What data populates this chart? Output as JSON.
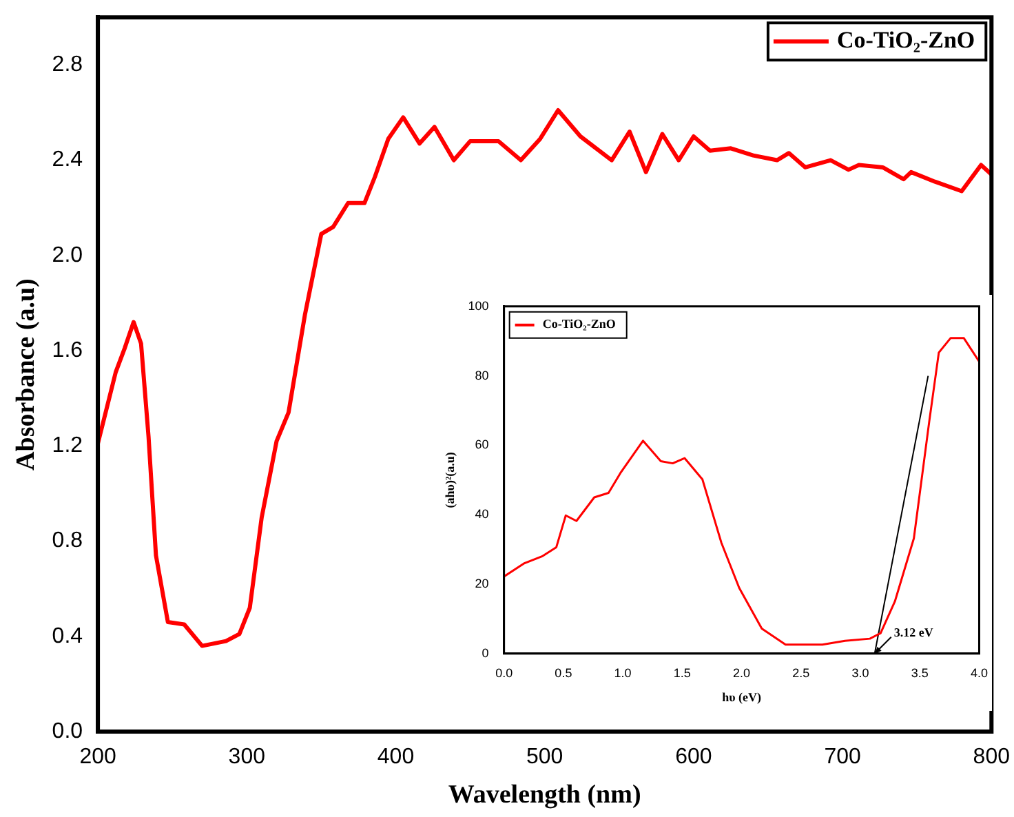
{
  "chart_data": [
    {
      "type": "line",
      "xlabel": "Wavelength (nm)",
      "ylabel": "Absorbance (a.u)",
      "legend": "top right",
      "marker": "none",
      "grid": false,
      "xlim": [
        200,
        800
      ],
      "xticks": [
        200,
        300,
        400,
        500,
        600,
        700,
        800
      ],
      "ylim": [
        0,
        3.0
      ],
      "yticks": [
        {
          "value": 0,
          "label": "0.0"
        },
        {
          "value": 0.4,
          "label": "0.4"
        },
        {
          "value": 0.8,
          "label": "0.8"
        },
        {
          "value": 1.2,
          "label": "1.2"
        },
        {
          "value": 1.6,
          "label": "1.6"
        },
        {
          "value": 2.0,
          "label": "2.0"
        },
        {
          "value": 2.4,
          "label": "2.4"
        },
        {
          "value": 2.8,
          "label": "2.8"
        }
      ],
      "x": [
        200,
        212,
        218,
        224,
        229,
        234,
        239,
        247,
        258,
        270,
        286,
        295,
        302,
        310,
        320,
        328,
        339,
        350,
        358,
        368,
        379,
        386,
        395,
        405,
        416,
        426,
        439,
        450,
        469,
        484,
        497,
        509,
        524,
        545,
        557,
        568,
        579,
        590,
        600,
        611,
        625,
        640,
        656,
        664,
        675,
        692,
        704,
        711,
        727,
        741,
        746,
        762,
        780,
        793,
        800
      ],
      "series": [
        {
          "name": "Co-TiO₂-ZnO",
          "color": "#ff0000",
          "values": [
            1.21,
            1.51,
            1.61,
            1.72,
            1.63,
            1.24,
            0.74,
            0.46,
            0.45,
            0.36,
            0.38,
            0.41,
            0.52,
            0.9,
            1.22,
            1.34,
            1.75,
            2.09,
            2.12,
            2.22,
            2.22,
            2.33,
            2.49,
            2.58,
            2.47,
            2.54,
            2.4,
            2.48,
            2.48,
            2.4,
            2.49,
            2.61,
            2.5,
            2.4,
            2.52,
            2.35,
            2.51,
            2.4,
            2.5,
            2.44,
            2.45,
            2.42,
            2.4,
            2.43,
            2.37,
            2.4,
            2.36,
            2.38,
            2.37,
            2.32,
            2.35,
            2.31,
            2.27,
            2.38,
            2.34
          ]
        }
      ]
    },
    {
      "type": "line",
      "xlabel": "hυ (eV)",
      "ylabel": "(ahυ)²(a.u)",
      "legend": "top left",
      "marker": "none",
      "grid": false,
      "xlim": [
        0,
        4.0
      ],
      "xticks": [
        {
          "value": 0,
          "label": "0.0"
        },
        {
          "value": 0.5,
          "label": "0.5"
        },
        {
          "value": 1,
          "label": "1.0"
        },
        {
          "value": 1.5,
          "label": "1.5"
        },
        {
          "value": 2,
          "label": "2.0"
        },
        {
          "value": 2.5,
          "label": "2.5"
        },
        {
          "value": 3,
          "label": "3.0"
        },
        {
          "value": 3.5,
          "label": "3.5"
        },
        {
          "value": 4,
          "label": "4.0"
        }
      ],
      "ylim": [
        0,
        100
      ],
      "yticks": [
        0,
        20,
        40,
        60,
        80,
        100
      ],
      "annotations": [
        {
          "text": "3.12 eV",
          "x": 3.12,
          "y": 0
        }
      ],
      "x": [
        0,
        0.17,
        0.32,
        0.44,
        0.52,
        0.61,
        0.76,
        0.88,
        0.98,
        1.17,
        1.32,
        1.42,
        1.52,
        1.67,
        1.83,
        1.98,
        2.17,
        2.37,
        2.68,
        2.87,
        3.08,
        3.17,
        3.29,
        3.45,
        3.58,
        3.66,
        3.76,
        3.87,
        4.0
      ],
      "series": [
        {
          "name": "Co-TiO₂-ZnO",
          "color": "#ff0000",
          "values": [
            22.2,
            26,
            28,
            30.6,
            39.8,
            38.2,
            45,
            46.3,
            52,
            61.3,
            55.4,
            54.8,
            56.3,
            50.2,
            31.9,
            18.9,
            7.2,
            2.6,
            2.6,
            3.7,
            4.3,
            5.9,
            15,
            33.2,
            67,
            86.7,
            90.9,
            90.9,
            84.1
          ]
        },
        {
          "type": "line",
          "color": "#000000",
          "x": [
            3.12,
            3.57
          ],
          "values": [
            0,
            80
          ]
        }
      ]
    }
  ]
}
